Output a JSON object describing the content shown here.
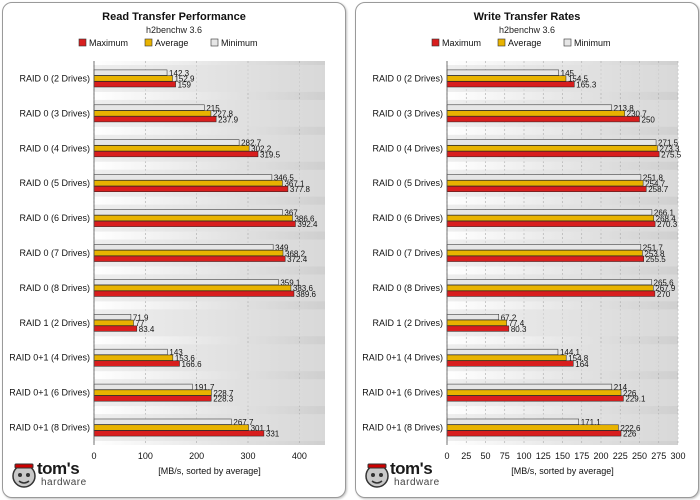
{
  "logo": {
    "main": "tom's",
    "sub": "hardware"
  },
  "colors": {
    "Maximum": "#d81e1e",
    "Average": "#e8b300",
    "Minimum": "#e6e6e6"
  },
  "chart_data": [
    {
      "type": "bar",
      "orientation": "horizontal",
      "title": "Read Transfer Performance",
      "subtitle": "h2benchw 3.6",
      "xlabel": "[MB/s, sorted by average]",
      "xlim": [
        0,
        450
      ],
      "xticks": [
        0,
        100,
        200,
        300,
        400
      ],
      "grid": true,
      "legend_position": "top",
      "legend": [
        "Maximum",
        "Average",
        "Minimum"
      ],
      "categories": [
        "RAID 0 (2 Drives)",
        "RAID 0 (3 Drives)",
        "RAID 0 (4 Drives)",
        "RAID 0 (5 Drives)",
        "RAID 0 (6 Drives)",
        "RAID 0 (7 Drives)",
        "RAID 0 (8 Drives)",
        "RAID 1 (2 Drives)",
        "RAID 0+1 (4 Drives)",
        "RAID 0+1 (6 Drives)",
        "RAID 0+1 (8 Drives)"
      ],
      "series": [
        {
          "name": "Minimum",
          "values": [
            142.3,
            215,
            282.7,
            346.5,
            367,
            349,
            359.1,
            71.9,
            143,
            191.7,
            267.7
          ]
        },
        {
          "name": "Average",
          "values": [
            152.9,
            227.8,
            302.2,
            367.1,
            386.6,
            368.2,
            383.6,
            77,
            153.6,
            228.7,
            301.1
          ]
        },
        {
          "name": "Maximum",
          "values": [
            159,
            237.9,
            319.5,
            377.8,
            392.4,
            372.4,
            389.6,
            83.4,
            166.6,
            228.3,
            331
          ]
        }
      ]
    },
    {
      "type": "bar",
      "orientation": "horizontal",
      "title": "Write Transfer Rates",
      "subtitle": "h2benchw 3.6",
      "xlabel": "[MB/s, sorted by average]",
      "xlim": [
        0,
        300
      ],
      "xticks": [
        0,
        25,
        50,
        75,
        100,
        125,
        150,
        175,
        200,
        225,
        250,
        275,
        300
      ],
      "grid": true,
      "legend_position": "top",
      "legend": [
        "Maximum",
        "Average",
        "Minimum"
      ],
      "categories": [
        "RAID 0 (2 Drives)",
        "RAID 0 (3 Drives)",
        "RAID 0 (4 Drives)",
        "RAID 0 (5 Drives)",
        "RAID 0 (6 Drives)",
        "RAID 0 (7 Drives)",
        "RAID 0 (8 Drives)",
        "RAID 1 (2 Drives)",
        "RAID 0+1 (4 Drives)",
        "RAID 0+1 (6 Drives)",
        "RAID 0+1 (8 Drives)"
      ],
      "series": [
        {
          "name": "Minimum",
          "values": [
            145,
            213.8,
            271.5,
            251.8,
            266.1,
            251.7,
            265.6,
            67.2,
            144.1,
            214,
            171.1
          ]
        },
        {
          "name": "Average",
          "values": [
            154.5,
            230.7,
            273.3,
            254.7,
            268.4,
            253.8,
            267.9,
            77.4,
            154.8,
            226,
            222.6
          ]
        },
        {
          "name": "Maximum",
          "values": [
            165.3,
            250,
            275.5,
            258.7,
            270.3,
            255.5,
            270,
            80.3,
            164,
            229.1,
            226
          ]
        }
      ]
    }
  ]
}
